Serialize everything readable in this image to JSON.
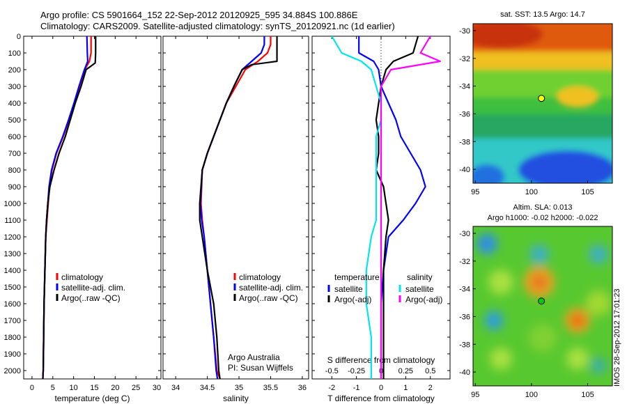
{
  "title_line1": "Argo profile: CS 5901664_152 22-Sep-2012 20120925_595 34.884S 100.886E",
  "title_line2": "Climatology: CARS2009. Satellite-adjusted climatology: synTS_20120921.nc (1d earlier)",
  "stamp": "IMOS 28-Sep-2012 17:01:23",
  "colors": {
    "climatology": "#ff0000",
    "satellite": "#0000ff",
    "argo": "#000000",
    "sat_s": "#00e5ee",
    "argo_s": "#ff00ff"
  },
  "chart_data": [
    {
      "type": "line",
      "xlabel": "temperature (deg C)",
      "xlim": [
        -2,
        31
      ],
      "xticks": [
        0,
        5,
        10,
        15,
        20,
        25,
        30
      ],
      "ylim": [
        2050,
        0
      ],
      "yticks": [
        0,
        100,
        200,
        300,
        400,
        500,
        600,
        700,
        800,
        900,
        1000,
        1100,
        1200,
        1300,
        1400,
        1500,
        1600,
        1700,
        1800,
        1900,
        2000
      ],
      "legend": [
        "climatology",
        "satellite-adj. clim.",
        "Argo(..raw -QC)"
      ],
      "series": [
        {
          "name": "climatology",
          "color": "#ff0000",
          "x": [
            14.2,
            14.2,
            13.8,
            12.7,
            11.4,
            10.2,
            8.9,
            7.5,
            5.9,
            4.8,
            4.2,
            3.9,
            3.6,
            3.3,
            3.1,
            2.9,
            2.8,
            2.7,
            2.6
          ],
          "y": [
            0,
            100,
            150,
            200,
            300,
            400,
            500,
            600,
            700,
            800,
            900,
            1000,
            1100,
            1200,
            1400,
            1600,
            1800,
            2000,
            2050
          ]
        },
        {
          "name": "satellite-adj. clim.",
          "color": "#0000ff",
          "x": [
            13.2,
            13.3,
            13.4,
            12.6,
            11.3,
            10.1,
            8.8,
            7.4,
            5.8,
            4.7,
            4.1,
            3.8,
            3.5,
            3.3,
            3.1,
            2.9,
            2.8,
            2.7,
            2.6
          ],
          "y": [
            0,
            100,
            150,
            200,
            300,
            400,
            500,
            600,
            700,
            800,
            900,
            1000,
            1100,
            1200,
            1400,
            1600,
            1800,
            2000,
            2050
          ]
        },
        {
          "name": "Argo(..raw -QC)",
          "color": "#000000",
          "x": [
            15.3,
            15.3,
            15.2,
            13.0,
            11.8,
            10.4,
            9.2,
            8.0,
            6.5,
            5.3,
            4.3,
            3.8,
            3.5,
            3.3,
            3.1,
            2.9,
            2.8,
            2.7,
            2.6
          ],
          "y": [
            0,
            100,
            160,
            200,
            300,
            400,
            500,
            600,
            700,
            800,
            900,
            1000,
            1100,
            1200,
            1400,
            1600,
            1800,
            2000,
            2050
          ]
        }
      ]
    },
    {
      "type": "line",
      "xlabel": "salinity",
      "xlim": [
        33.8,
        36.1
      ],
      "xticks": [
        34,
        34.5,
        35,
        35.5,
        36
      ],
      "ylim": [
        2050,
        0
      ],
      "legend": [
        "climatology",
        "satellite-adj. clim.",
        "Argo(..raw -QC)"
      ],
      "annotation": [
        "Argo Australia",
        "PI: Susan Wijffels"
      ],
      "series": [
        {
          "name": "climatology",
          "color": "#ff0000",
          "x": [
            35.5,
            35.5,
            35.45,
            35.3,
            35.1,
            34.95,
            34.8,
            34.7,
            34.6,
            34.5,
            34.42,
            34.4,
            34.42,
            34.45,
            34.5,
            34.55,
            34.6,
            34.65,
            34.7
          ],
          "y": [
            0,
            50,
            100,
            150,
            200,
            300,
            400,
            500,
            600,
            700,
            800,
            1000,
            1100,
            1200,
            1400,
            1600,
            1800,
            2000,
            2050
          ]
        },
        {
          "name": "satellite-adj. clim.",
          "color": "#0000ff",
          "x": [
            35.4,
            35.4,
            35.35,
            35.2,
            35.05,
            34.92,
            34.8,
            34.7,
            34.6,
            34.5,
            34.42,
            34.39,
            34.41,
            34.45,
            34.5,
            34.55,
            34.6,
            34.64,
            34.66
          ],
          "y": [
            0,
            50,
            100,
            150,
            200,
            300,
            400,
            500,
            600,
            700,
            800,
            1000,
            1100,
            1200,
            1400,
            1600,
            1800,
            2000,
            2050
          ]
        },
        {
          "name": "Argo(..raw -QC)",
          "color": "#000000",
          "x": [
            35.6,
            35.6,
            35.6,
            35.2,
            35.05,
            34.92,
            34.8,
            34.7,
            34.6,
            34.5,
            34.42,
            34.38,
            34.38,
            34.42,
            34.5,
            34.6,
            34.65,
            34.68,
            34.7
          ],
          "y": [
            0,
            50,
            150,
            170,
            200,
            300,
            400,
            500,
            600,
            700,
            800,
            1000,
            1100,
            1200,
            1400,
            1600,
            1800,
            2000,
            2050
          ]
        }
      ]
    },
    {
      "type": "line",
      "xlabel": "T difference from climatology",
      "xlabel_top": "S difference from climatology",
      "xlim": [
        -2.8,
        2.8
      ],
      "xticks": [
        -2,
        -1,
        0,
        1,
        2
      ],
      "xticks_top": [
        -0.5,
        -0.25,
        0,
        0.25,
        0.5
      ],
      "ylim": [
        2050,
        0
      ],
      "legend_temperature": [
        "temperature",
        "satellite",
        "Argo(-adj)"
      ],
      "legend_salinity": [
        "salinity",
        "satellite",
        "Argo(-adj)"
      ],
      "series": [
        {
          "name": "temperature satellite",
          "color": "#0000ff",
          "x": [
            -0.9,
            -0.9,
            -0.3,
            -0.1,
            0.0,
            0.3,
            0.6,
            0.8,
            1.2,
            1.6,
            1.8,
            1.4,
            0.9,
            0.3,
            0.1,
            0.0,
            0.0,
            0.0,
            0.0
          ],
          "y": [
            0,
            100,
            150,
            200,
            300,
            400,
            500,
            600,
            700,
            800,
            900,
            1000,
            1100,
            1200,
            1400,
            1600,
            1800,
            2000,
            2050
          ]
        },
        {
          "name": "temperature Argo(-adj)",
          "color": "#000000",
          "x": [
            1.5,
            1.3,
            0.5,
            0.2,
            0.0,
            -0.1,
            -0.2,
            -0.1,
            -0.1,
            -0.2,
            0.1,
            0.2,
            0.3,
            0.2,
            0.1,
            0.1,
            0.1,
            0.1,
            0.1
          ],
          "y": [
            0,
            100,
            150,
            200,
            300,
            400,
            500,
            600,
            700,
            800,
            900,
            1000,
            1100,
            1200,
            1400,
            1600,
            1800,
            2000,
            2050
          ]
        },
        {
          "name": "salinity satellite",
          "color": "#00e5ee",
          "x": [
            -0.5,
            -0.4,
            -0.2,
            -0.1,
            -0.05,
            0.0,
            0.0,
            -0.05,
            -0.05,
            -0.05,
            -0.05,
            -0.05,
            -0.05,
            -0.1,
            -0.15,
            -0.15,
            -0.1,
            -0.1,
            -0.1
          ],
          "y": [
            0,
            100,
            150,
            200,
            300,
            400,
            500,
            600,
            700,
            800,
            900,
            1000,
            1100,
            1200,
            1400,
            1600,
            1800,
            2000,
            2050
          ]
        },
        {
          "name": "salinity Argo(-adj)",
          "color": "#ff00ff",
          "x": [
            0.5,
            0.4,
            0.6,
            0.1,
            0.0,
            0.0,
            0.0,
            0.0,
            0.0,
            0.0,
            0.0,
            0.0,
            0.0,
            0.0,
            0.0,
            0.0,
            0.0,
            0.0,
            0.0
          ],
          "y": [
            0,
            100,
            150,
            200,
            300,
            400,
            500,
            600,
            700,
            800,
            900,
            1000,
            1100,
            1200,
            1400,
            1600,
            1800,
            2000,
            2050
          ]
        }
      ]
    },
    {
      "type": "heatmap",
      "title": "sat. SST: 13.5 Argo: 14.7",
      "xlim": [
        94.8,
        107.2
      ],
      "ylim": [
        -41,
        -29.5
      ],
      "xticks": [
        95,
        100,
        105
      ],
      "yticks": [
        -30,
        -32,
        -34,
        -36,
        -38,
        -40
      ],
      "point": {
        "lon": 100.886,
        "lat": -34.884,
        "color": "#ffff00"
      }
    },
    {
      "type": "heatmap",
      "title": [
        "Altim. SLA: 0.013",
        "Argo h1000: -0.02 h2000: -0.022"
      ],
      "xlim": [
        94.8,
        107.2
      ],
      "ylim": [
        -41,
        -29.5
      ],
      "xticks": [
        95,
        100,
        105
      ],
      "yticks": [
        -30,
        -32,
        -34,
        -36,
        -38,
        -40
      ],
      "point": {
        "lon": 100.886,
        "lat": -34.884,
        "color": "#00cc00"
      }
    }
  ]
}
